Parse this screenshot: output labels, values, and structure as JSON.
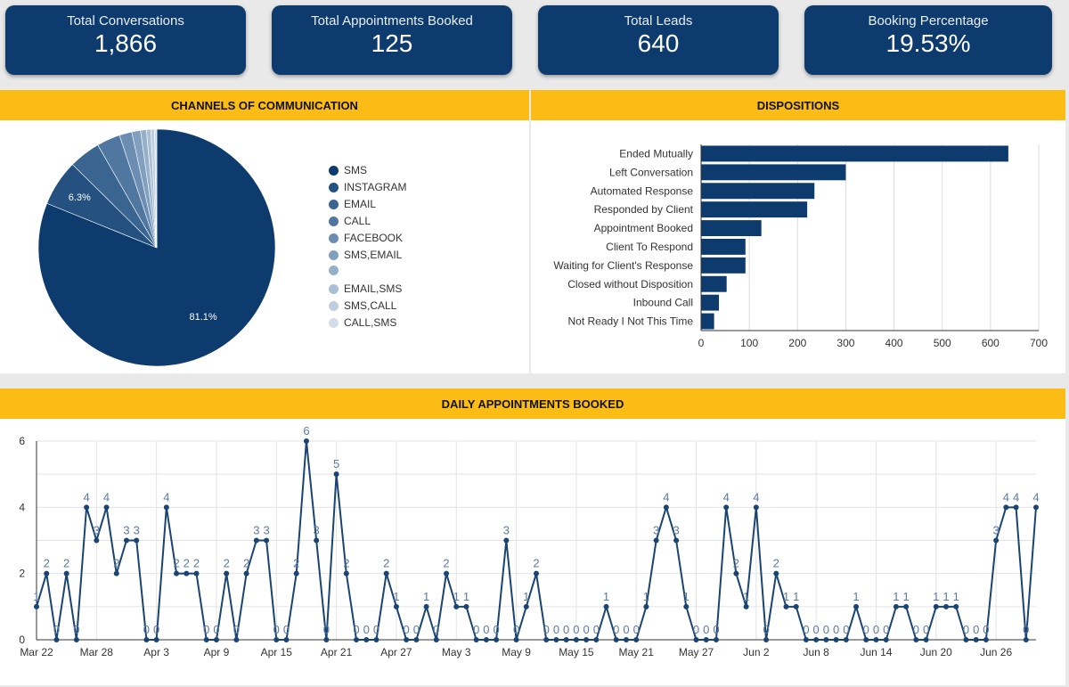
{
  "kpis": [
    {
      "label": "Total Conversations",
      "value": "1,866"
    },
    {
      "label": "Total Appointments Booked",
      "value": "125"
    },
    {
      "label": "Total Leads",
      "value": "640"
    },
    {
      "label": "Booking Percentage",
      "value": "19.53%"
    }
  ],
  "headers": {
    "channels": "CHANNELS OF COMMUNICATION",
    "dispositions": "DISPOSITIONS",
    "daily": "DAILY APPOINTMENTS BOOKED"
  },
  "colors": {
    "navy": "#0d3b6e",
    "yellow": "#fbbd15",
    "line": "#1a4472",
    "label": "#5a7aa0"
  },
  "chart_data": [
    {
      "type": "pie",
      "title": "CHANNELS OF COMMUNICATION",
      "slices": [
        {
          "label": "SMS",
          "value": 81.1,
          "display": "81.1%",
          "color": "#0d3b6e"
        },
        {
          "label": "INSTAGRAM",
          "value": 6.3,
          "display": "6.3%",
          "color": "#24517f"
        },
        {
          "label": "EMAIL",
          "value": 4.3,
          "display": "",
          "color": "#3a6590"
        },
        {
          "label": "CALL",
          "value": 3.2,
          "display": "",
          "color": "#4f77a0"
        },
        {
          "label": "FACEBOOK",
          "value": 1.7,
          "display": "",
          "color": "#6a8db1"
        },
        {
          "label": "SMS,EMAIL",
          "value": 1.2,
          "display": "",
          "color": "#819fbf"
        },
        {
          "label": "",
          "value": 0.8,
          "display": "",
          "color": "#97b0ca"
        },
        {
          "label": "EMAIL,SMS",
          "value": 0.6,
          "display": "",
          "color": "#abc0d5"
        },
        {
          "label": "SMS,CALL",
          "value": 0.5,
          "display": "",
          "color": "#bfcfdf"
        },
        {
          "label": "CALL,SMS",
          "value": 0.3,
          "display": "",
          "color": "#d2dde8"
        }
      ]
    },
    {
      "type": "bar",
      "title": "DISPOSITIONS",
      "orientation": "horizontal",
      "categories": [
        "Ended Mutually",
        "Left Conversation",
        "Automated Response",
        "Responded by Client",
        "Appointment Booked",
        "Client To Respond",
        "Waiting for Client's Response",
        "Closed without Disposition",
        "Inbound Call",
        "Not Ready I Not This Time"
      ],
      "values": [
        637,
        300,
        235,
        220,
        125,
        92,
        92,
        53,
        37,
        27
      ],
      "xlim": [
        0,
        700
      ],
      "ticks": [
        0,
        100,
        200,
        300,
        400,
        500,
        600,
        700
      ],
      "grid": true
    },
    {
      "type": "line",
      "title": "DAILY APPOINTMENTS BOOKED",
      "start_label": "Mar 22",
      "x_tick_labels": [
        "Mar 22",
        "Mar 28",
        "Apr 3",
        "Apr 9",
        "Apr 15",
        "Apr 21",
        "Apr 27",
        "May 3",
        "May 9",
        "May 15",
        "May 21",
        "May 27",
        "Jun 2",
        "Jun 8",
        "Jun 14",
        "Jun 20",
        "Jun 26"
      ],
      "values": [
        1,
        2,
        0,
        2,
        0,
        4,
        3,
        4,
        2,
        3,
        3,
        0,
        0,
        4,
        2,
        2,
        2,
        0,
        0,
        2,
        0,
        2,
        3,
        3,
        0,
        0,
        2,
        6,
        3,
        0,
        5,
        2,
        0,
        0,
        0,
        2,
        1,
        0,
        0,
        1,
        0,
        2,
        1,
        1,
        0,
        0,
        0,
        3,
        0,
        1,
        2,
        0,
        0,
        0,
        0,
        0,
        0,
        1,
        0,
        0,
        0,
        1,
        3,
        4,
        3,
        1,
        0,
        0,
        0,
        4,
        2,
        1,
        4,
        0,
        2,
        1,
        1,
        0,
        0,
        0,
        0,
        0,
        1,
        0,
        0,
        0,
        1,
        1,
        0,
        0,
        1,
        1,
        1,
        0,
        0,
        0,
        3,
        4,
        4,
        0,
        4
      ],
      "ylim": [
        0,
        6
      ],
      "yticks": [
        0,
        2,
        4,
        6
      ],
      "grid": true
    }
  ]
}
